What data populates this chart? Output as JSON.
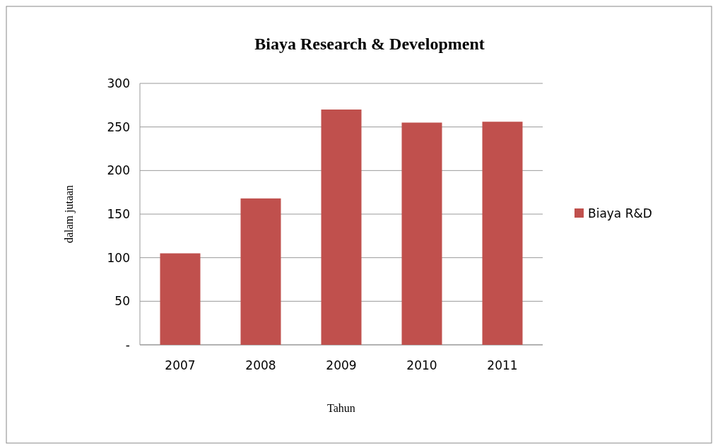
{
  "chart_data": {
    "type": "bar",
    "title": "Biaya Research & Development",
    "xlabel": "Tahun",
    "ylabel": "dalam jutaan",
    "categories": [
      "2007",
      "2008",
      "2009",
      "2010",
      "2011"
    ],
    "series": [
      {
        "name": "Biaya R&D",
        "color": "#c0504d",
        "values": [
          105,
          168,
          270,
          255,
          256
        ]
      }
    ],
    "ylim": [
      0,
      300
    ],
    "yticks": [
      {
        "value": 0,
        "label": "-"
      },
      50,
      100,
      150,
      200,
      250,
      300
    ],
    "grid": "y",
    "legend": "right"
  }
}
